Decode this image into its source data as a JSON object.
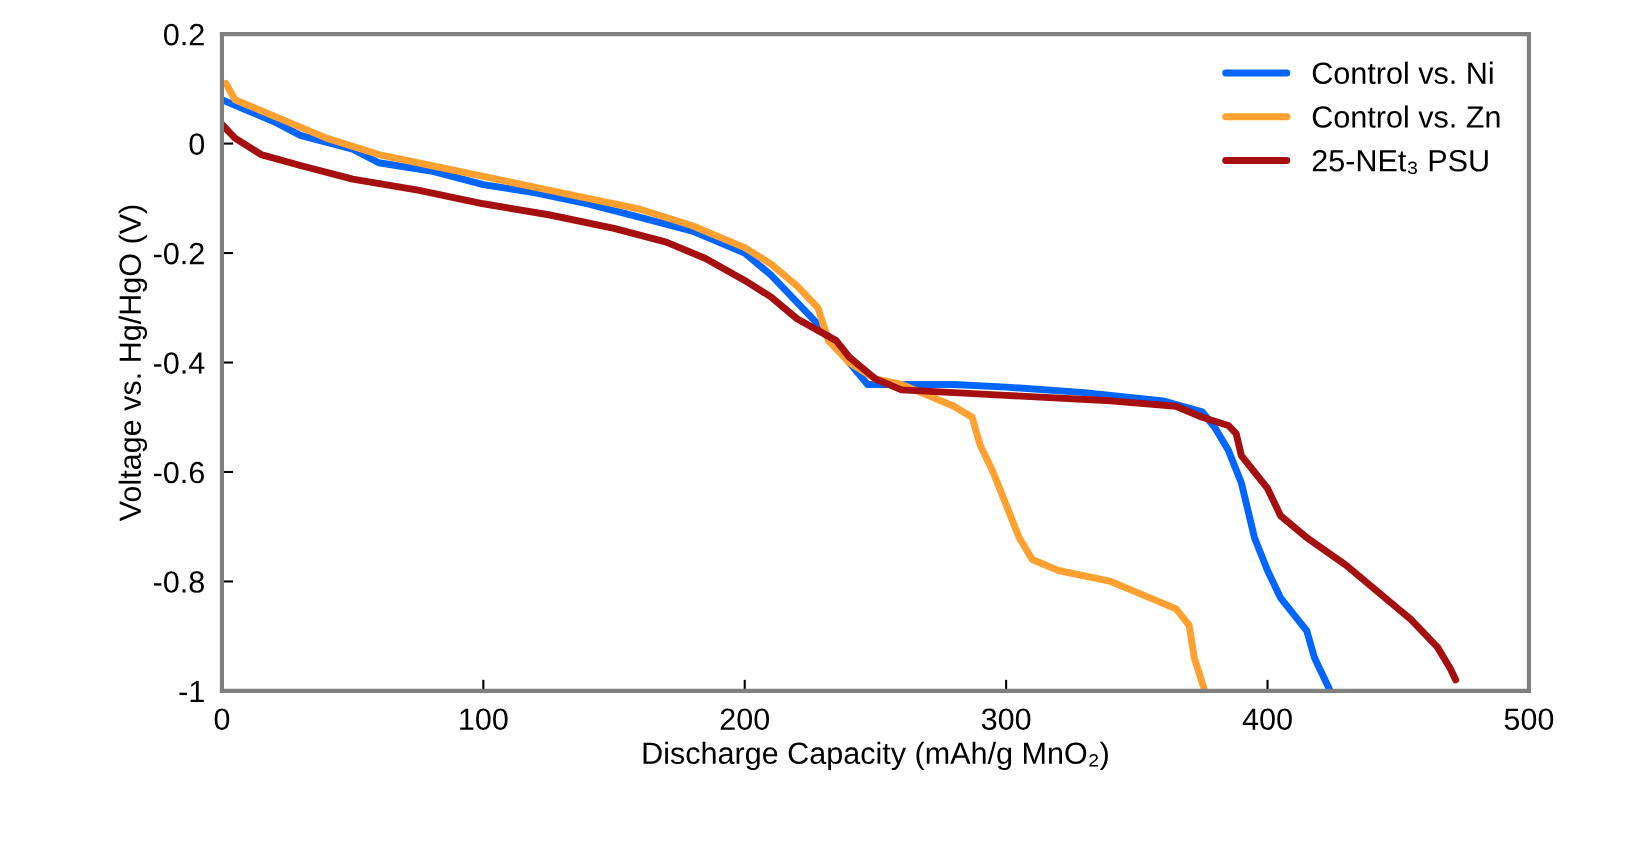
{
  "chart_data": {
    "type": "line",
    "xlabel": "Discharge Capacity (mAh/g MnO₂)",
    "ylabel": "Voltage vs. Hg/HgO (V)",
    "xlim": [
      0,
      500
    ],
    "xticks": [
      0,
      100,
      200,
      300,
      400,
      500
    ],
    "ylim": [
      -1,
      0.2
    ],
    "yticks": [
      0.2,
      0,
      -0.2,
      -0.4,
      -0.6,
      -0.8,
      -1
    ],
    "grid": false,
    "legend": "top right",
    "line_style": "solid",
    "marker": "none",
    "series": [
      {
        "name": "Control vs. Ni",
        "color": "#0066ff",
        "x": [
          0,
          10,
          20,
          30,
          50,
          60,
          80,
          100,
          120,
          140,
          160,
          180,
          200,
          210,
          220,
          230,
          240,
          247,
          255,
          280,
          300,
          330,
          360,
          375,
          380,
          385,
          390,
          395,
          400,
          405,
          410,
          415,
          418,
          422,
          424
        ],
        "values": [
          0.08,
          0.06,
          0.04,
          0.015,
          -0.01,
          -0.035,
          -0.05,
          -0.075,
          -0.09,
          -0.11,
          -0.135,
          -0.16,
          -0.2,
          -0.24,
          -0.29,
          -0.34,
          -0.4,
          -0.44,
          -0.44,
          -0.44,
          -0.445,
          -0.455,
          -0.47,
          -0.49,
          -0.52,
          -0.56,
          -0.62,
          -0.72,
          -0.78,
          -0.83,
          -0.86,
          -0.89,
          -0.94,
          -0.98,
          -1.0
        ]
      },
      {
        "name": "Control vs. Zn",
        "color": "#ffa030",
        "x": [
          1.5,
          5,
          15,
          30,
          40,
          60,
          80,
          100,
          120,
          140,
          160,
          180,
          200,
          210,
          220,
          228,
          232,
          240,
          250,
          260,
          280,
          287,
          290,
          295,
          300,
          305,
          310,
          320,
          340,
          350,
          365,
          370,
          372,
          376
        ],
        "values": [
          0.11,
          0.08,
          0.06,
          0.03,
          0.01,
          -0.02,
          -0.04,
          -0.06,
          -0.08,
          -0.1,
          -0.12,
          -0.15,
          -0.19,
          -0.22,
          -0.26,
          -0.3,
          -0.36,
          -0.4,
          -0.43,
          -0.44,
          -0.48,
          -0.5,
          -0.55,
          -0.6,
          -0.66,
          -0.72,
          -0.76,
          -0.78,
          -0.8,
          -0.82,
          -0.85,
          -0.88,
          -0.94,
          -1.0
        ]
      },
      {
        "name": "25-NEt₃ PSU",
        "color": "#a50f0f",
        "x": [
          0,
          5,
          15,
          30,
          50,
          75,
          100,
          125,
          150,
          170,
          185,
          200,
          210,
          220,
          235,
          240,
          250,
          260,
          300,
          340,
          365,
          375,
          385,
          388,
          390,
          395,
          400,
          405,
          415,
          430,
          450,
          455,
          465,
          470,
          472
        ],
        "values": [
          0.035,
          0.01,
          -0.02,
          -0.04,
          -0.065,
          -0.085,
          -0.11,
          -0.13,
          -0.155,
          -0.18,
          -0.21,
          -0.25,
          -0.28,
          -0.32,
          -0.36,
          -0.39,
          -0.43,
          -0.45,
          -0.46,
          -0.47,
          -0.48,
          -0.5,
          -0.515,
          -0.53,
          -0.57,
          -0.6,
          -0.63,
          -0.68,
          -0.72,
          -0.77,
          -0.85,
          -0.87,
          -0.92,
          -0.96,
          -0.98
        ]
      }
    ]
  }
}
